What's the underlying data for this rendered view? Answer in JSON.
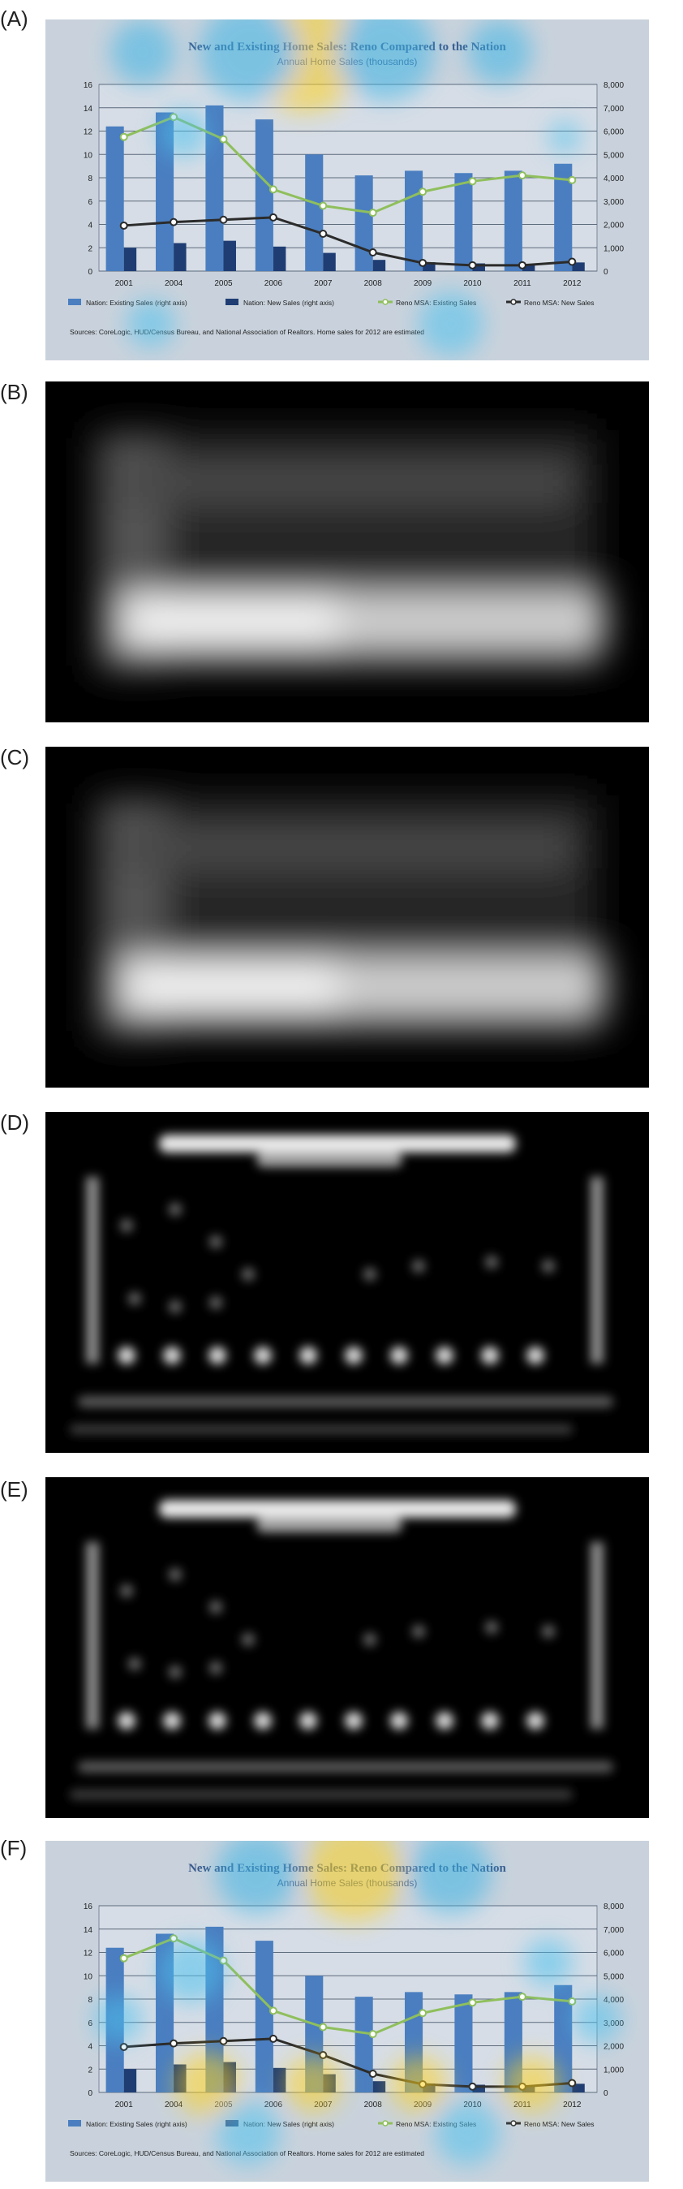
{
  "panels": [
    {
      "label": "(A)",
      "kind": "chart-overlay"
    },
    {
      "label": "(B)",
      "kind": "map-bottom"
    },
    {
      "label": "(C)",
      "kind": "map-bottom"
    },
    {
      "label": "(D)",
      "kind": "map-text"
    },
    {
      "label": "(E)",
      "kind": "map-text"
    },
    {
      "label": "(F)",
      "kind": "chart-overlay"
    }
  ],
  "chart_data": {
    "type": "bar",
    "title": "New and Existing Home Sales: Reno Compared to the Nation",
    "subtitle": "Annual Home Sales (thousands)",
    "categories": [
      "2001",
      "2004",
      "2005",
      "2006",
      "2007",
      "2008",
      "2009",
      "2010",
      "2011",
      "2012"
    ],
    "left_axis": {
      "ticks": [
        "0",
        "2",
        "4",
        "6",
        "8",
        "10",
        "12",
        "14",
        "16"
      ],
      "ylim": [
        0,
        16
      ]
    },
    "right_axis": {
      "ticks": [
        "0",
        "1,000",
        "2,000",
        "3,000",
        "4,000",
        "5,000",
        "6,000",
        "7,000",
        "8,000"
      ],
      "ylim": [
        0,
        8000
      ]
    },
    "series": [
      {
        "name": "Nation: Existing Sales (right axis)",
        "kind": "bar",
        "axis": "right",
        "color": "#4a7ec0",
        "values": [
          6200,
          6800,
          7100,
          6500,
          5000,
          4100,
          4300,
          4200,
          4300,
          4600
        ]
      },
      {
        "name": "Nation: New Sales (right axis)",
        "kind": "bar",
        "axis": "right",
        "color": "#1f3d73",
        "values": [
          1000,
          1200,
          1300,
          1050,
          780,
          480,
          380,
          330,
          310,
          370
        ]
      },
      {
        "name": "Reno MSA: Existing Sales",
        "kind": "line",
        "axis": "left",
        "color": "#8fbf5c",
        "values": [
          11.5,
          13.2,
          11.3,
          7.0,
          5.6,
          5.0,
          6.8,
          7.7,
          8.2,
          7.8
        ]
      },
      {
        "name": "Reno MSA: New Sales",
        "kind": "line",
        "axis": "left",
        "color": "#2b2b2b",
        "values": [
          3.9,
          4.2,
          4.4,
          4.6,
          3.2,
          1.6,
          0.7,
          0.5,
          0.5,
          0.8
        ]
      }
    ],
    "legend": {
      "placement": "bottom"
    },
    "source": "Sources: CoreLogic, HUD/Census Bureau, and National Association of Realtors. Home sales for 2012 are estimated"
  }
}
